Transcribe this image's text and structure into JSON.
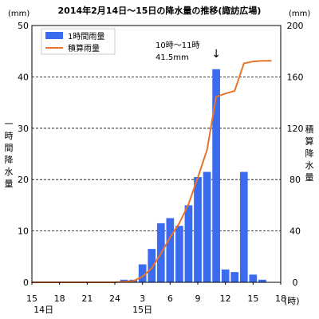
{
  "chart_data": {
    "type": "bar",
    "title": "2014年2月14日～15日の降水量の推移(諏訪広場)",
    "left_unit": "(mm)",
    "right_unit": "(mm)",
    "ylabel_left": "一時間降水量",
    "ylabel_right": "積算降水量",
    "left_ylim": [
      0,
      50
    ],
    "right_ylim": [
      0,
      200
    ],
    "left_ticks": [
      0,
      10,
      20,
      30,
      40,
      50
    ],
    "right_ticks": [
      0,
      40,
      80,
      120,
      160,
      200
    ],
    "grid": "horizontal dashed",
    "legend_position": "top-left",
    "x_ticks": [
      "15",
      "18",
      "21",
      "24",
      "3",
      "6",
      "9",
      "12",
      "15",
      "18"
    ],
    "x_unit": "(時)",
    "date_labels": [
      {
        "text": "14日",
        "at_tick": "18"
      },
      {
        "text": "15日",
        "at_tick": "3"
      }
    ],
    "x_hours": [
      "14日16時",
      "14日17時",
      "14日18時",
      "14日19時",
      "14日20時",
      "14日21時",
      "14日22時",
      "14日23時",
      "14日24時",
      "15日1時",
      "15日2時",
      "15日3時",
      "15日4時",
      "15日5時",
      "15日6時",
      "15日7時",
      "15日8時",
      "15日9時",
      "15日10時",
      "15日11時",
      "15日12時",
      "15日13時",
      "15日14時",
      "15日15時",
      "15日16時",
      "15日17時"
    ],
    "series": [
      {
        "name": "1時間雨量",
        "kind": "bar",
        "axis": "left",
        "color": "#3b6cf0",
        "values": [
          0,
          0,
          0,
          0,
          0,
          0,
          0,
          0,
          0,
          0.5,
          0.5,
          3.5,
          6.5,
          11.5,
          12.5,
          11,
          15,
          20.5,
          21.5,
          41.5,
          2.5,
          2,
          21.5,
          1.5,
          0.5,
          0
        ]
      },
      {
        "name": "積算雨量",
        "kind": "line",
        "axis": "right",
        "color": "#e8742a",
        "values": [
          0,
          0,
          0,
          0,
          0,
          0,
          0,
          0,
          0,
          0.5,
          1,
          4.5,
          11,
          22.5,
          35,
          46,
          61,
          81.5,
          103,
          144.5,
          147,
          149,
          170.5,
          172,
          172.5,
          172.5
        ]
      }
    ],
    "annotation": {
      "line1": "10時～11時",
      "line2": "41.5mm",
      "arrow": "↓",
      "target_hour": "15日11時"
    }
  }
}
